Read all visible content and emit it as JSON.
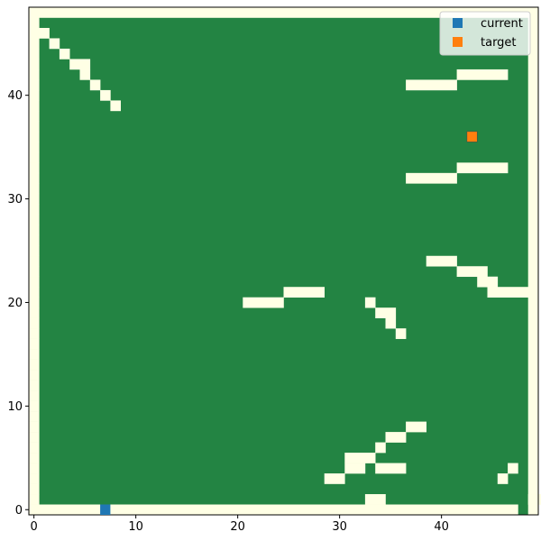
{
  "chart_data": {
    "type": "heatmap",
    "title": "",
    "xlabel": "",
    "ylabel": "",
    "xlim": [
      -0.5,
      49.5
    ],
    "ylim": [
      -0.5,
      48.5
    ],
    "x_ticks": [
      0,
      10,
      20,
      30,
      40
    ],
    "y_ticks": [
      0,
      10,
      20,
      30,
      40
    ],
    "grid": false,
    "legend_position": "top-right",
    "colors": {
      "open": "#ffffe5",
      "obstacle": "#238443",
      "current": "#1f77b4",
      "target": "#ff7f0e"
    },
    "legend": [
      {
        "label": "current",
        "color": "#1f77b4"
      },
      {
        "label": "target",
        "color": "#ff7f0e"
      }
    ],
    "current": [
      7,
      0
    ],
    "target": [
      43,
      36
    ],
    "open_cells": [
      [
        0,
        0,
        48
      ],
      [
        0,
        1,
        1
      ],
      [
        0,
        2,
        1
      ],
      [
        0,
        3,
        1
      ],
      [
        0,
        4,
        1
      ],
      [
        0,
        5,
        1
      ],
      [
        0,
        6,
        1
      ],
      [
        0,
        7,
        1
      ],
      [
        0,
        8,
        1
      ],
      [
        0,
        9,
        1
      ],
      [
        0,
        10,
        1
      ],
      [
        0,
        11,
        1
      ],
      [
        0,
        12,
        1
      ],
      [
        0,
        13,
        1
      ],
      [
        0,
        14,
        1
      ],
      [
        0,
        15,
        1
      ],
      [
        0,
        16,
        1
      ],
      [
        0,
        17,
        1
      ],
      [
        0,
        18,
        1
      ],
      [
        0,
        19,
        1
      ],
      [
        0,
        20,
        1
      ],
      [
        0,
        21,
        1
      ],
      [
        0,
        22,
        1
      ],
      [
        0,
        23,
        1
      ],
      [
        0,
        24,
        1
      ],
      [
        0,
        25,
        1
      ],
      [
        0,
        26,
        1
      ],
      [
        0,
        27,
        1
      ],
      [
        0,
        28,
        1
      ],
      [
        0,
        29,
        1
      ],
      [
        0,
        30,
        1
      ],
      [
        0,
        31,
        1
      ],
      [
        0,
        32,
        1
      ],
      [
        0,
        33,
        1
      ],
      [
        0,
        34,
        1
      ],
      [
        0,
        35,
        1
      ],
      [
        0,
        36,
        1
      ],
      [
        0,
        37,
        1
      ],
      [
        0,
        38,
        1
      ],
      [
        0,
        39,
        1
      ],
      [
        0,
        40,
        1
      ],
      [
        0,
        41,
        1
      ],
      [
        0,
        42,
        1
      ],
      [
        0,
        43,
        1
      ],
      [
        0,
        44,
        1
      ],
      [
        0,
        45,
        1
      ],
      [
        0,
        46,
        2
      ],
      [
        0,
        47,
        1
      ],
      [
        0,
        48,
        50
      ],
      [
        49,
        1,
        47
      ],
      [
        33,
        1,
        2
      ],
      [
        29,
        3,
        2
      ],
      [
        46,
        3,
        1
      ],
      [
        31,
        4,
        2
      ],
      [
        34,
        4,
        3
      ],
      [
        47,
        4,
        1
      ],
      [
        31,
        5,
        3
      ],
      [
        34,
        6,
        1
      ],
      [
        35,
        7,
        2
      ],
      [
        37,
        8,
        2
      ],
      [
        36,
        17,
        1
      ],
      [
        35,
        18,
        1
      ],
      [
        34,
        19,
        2
      ],
      [
        33,
        20,
        1
      ],
      [
        21,
        20,
        4
      ],
      [
        25,
        21,
        4
      ],
      [
        45,
        21,
        4
      ],
      [
        44,
        22,
        2
      ],
      [
        42,
        23,
        3
      ],
      [
        39,
        24,
        3
      ],
      [
        37,
        32,
        5
      ],
      [
        42,
        33,
        5
      ],
      [
        37,
        41,
        5
      ],
      [
        42,
        42,
        5
      ],
      [
        2,
        45,
        1
      ],
      [
        3,
        44,
        1
      ],
      [
        4,
        43,
        2
      ],
      [
        5,
        42,
        1
      ],
      [
        6,
        41,
        1
      ],
      [
        7,
        40,
        1
      ],
      [
        8,
        39,
        1
      ]
    ]
  }
}
